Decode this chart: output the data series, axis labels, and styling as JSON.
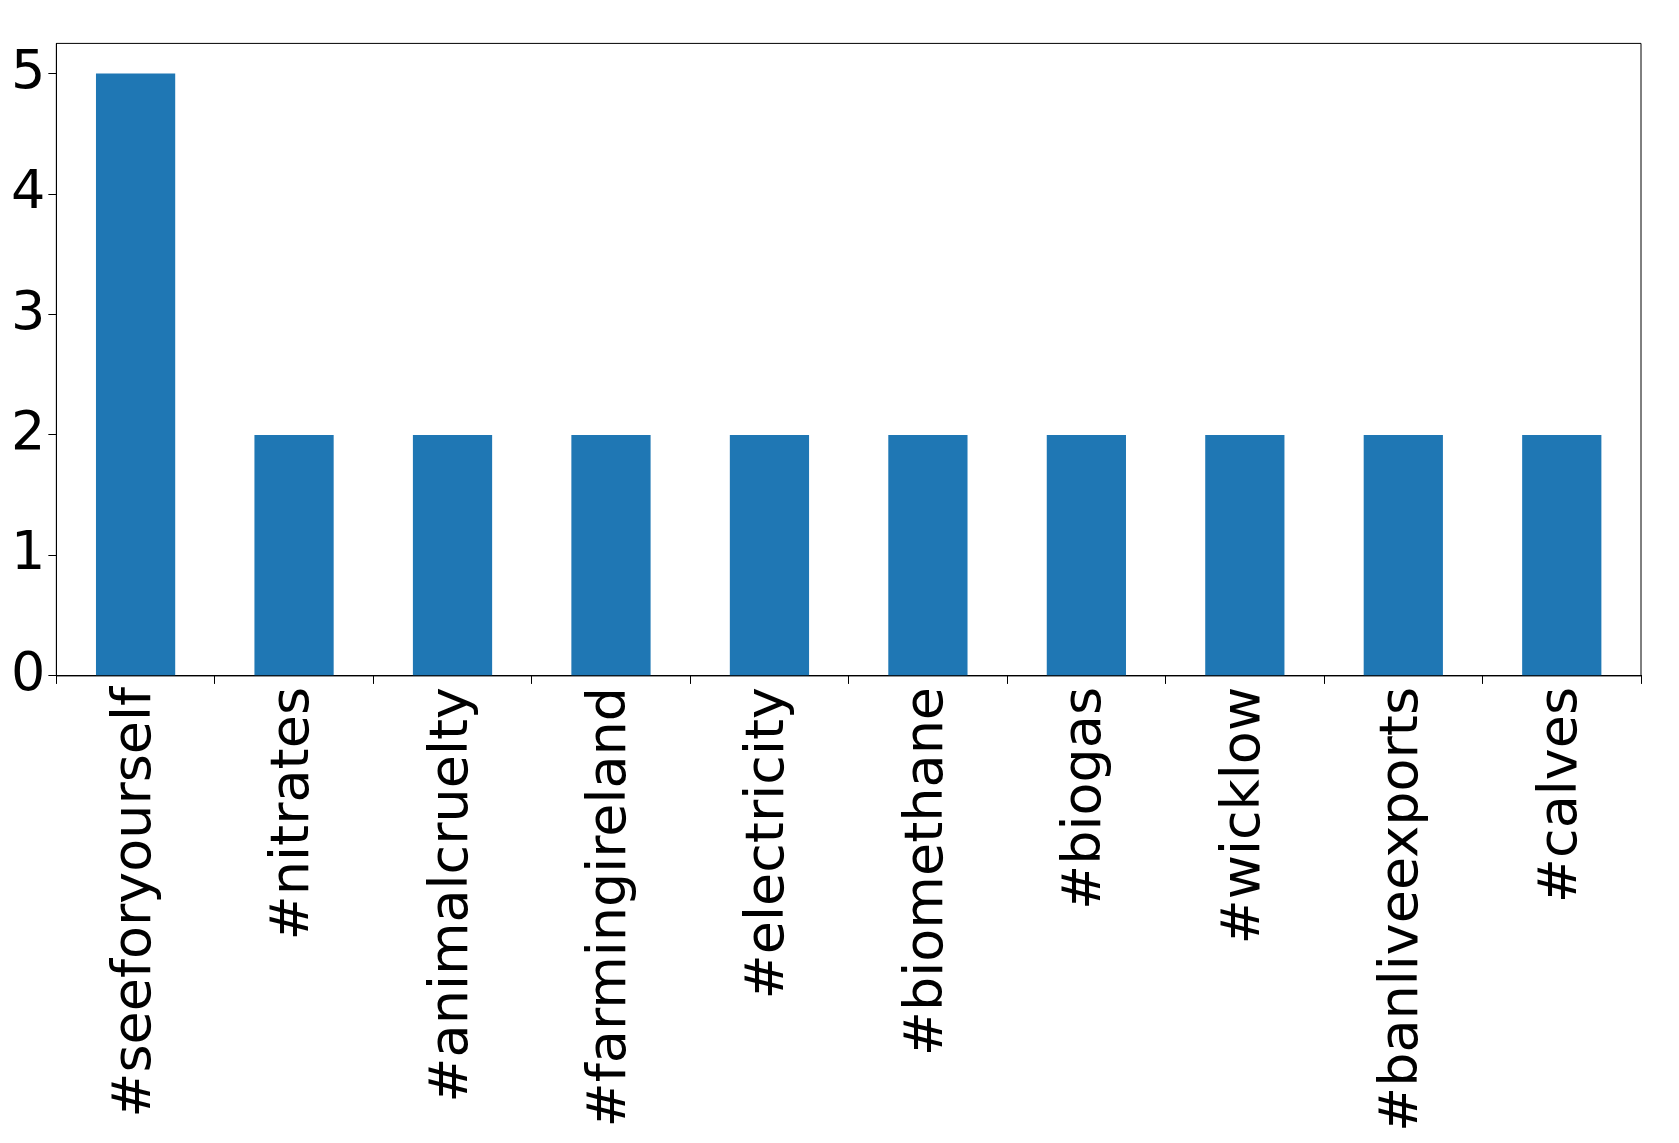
{
  "chart_data": {
    "type": "bar",
    "categories": [
      "#seeforyourself",
      "#nitrates",
      "#animalcruelty",
      "#farmingireland",
      "#electricity",
      "#biomethane",
      "#biogas",
      "#wicklow",
      "#banliveexports",
      "#calves"
    ],
    "values": [
      5,
      2,
      2,
      2,
      2,
      2,
      2,
      2,
      2,
      2
    ],
    "color": "#1f77b4",
    "ylim": [
      0,
      5.25
    ],
    "yticks": [
      0,
      1,
      2,
      3,
      4,
      5
    ],
    "grid": false,
    "legend": false
  }
}
